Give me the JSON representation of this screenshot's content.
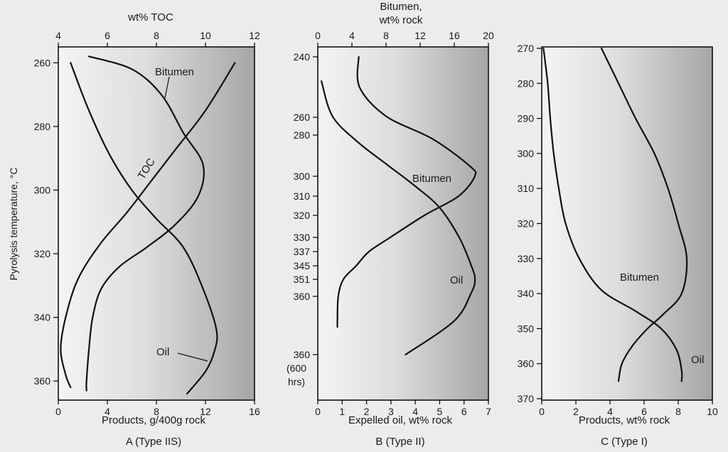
{
  "colors": {
    "panel_light": "#f2f2f2",
    "panel_dark": "#a9a9a9",
    "line": "#111111",
    "page": "#ececec"
  },
  "chart_data": [
    {
      "id": "A",
      "type": "line",
      "caption": "A (Type IIS)",
      "ylabel": "Pyrolysis temperature, °C",
      "ylim": [
        366,
        255
      ],
      "y_ticks": [
        260,
        280,
        300,
        320,
        340,
        360
      ],
      "top_axis": {
        "label": "wt% TOC",
        "ticks": [
          4,
          6,
          8,
          10,
          12
        ],
        "range": [
          4,
          12
        ]
      },
      "bottom_axis": {
        "label": "Products, g/400g rock",
        "ticks": [
          0,
          4,
          8,
          12,
          16
        ],
        "range": [
          0,
          16
        ]
      },
      "series": [
        {
          "name": "Bitumen",
          "axis": "bottom",
          "points": [
            [
              2.5,
              258
            ],
            [
              6,
              262
            ],
            [
              8.4,
              270
            ],
            [
              10.2,
              282
            ],
            [
              11.8,
              292
            ],
            [
              11.4,
              302
            ],
            [
              9.5,
              311
            ],
            [
              7.2,
              318
            ],
            [
              5.0,
              324
            ],
            [
              3.5,
              331
            ],
            [
              2.8,
              340
            ],
            [
              2.5,
              350
            ],
            [
              2.3,
              360
            ],
            [
              2.3,
              363
            ]
          ]
        },
        {
          "name": "TOC",
          "axis": "top",
          "points": [
            [
              11.2,
              260
            ],
            [
              10.0,
              275
            ],
            [
              8.8,
              287
            ],
            [
              7.8,
              297
            ],
            [
              6.8,
              307
            ],
            [
              5.7,
              317
            ],
            [
              4.8,
              328
            ],
            [
              4.3,
              340
            ],
            [
              4.1,
              350
            ],
            [
              4.3,
              358
            ],
            [
              4.5,
              362
            ]
          ]
        },
        {
          "name": "Oil",
          "axis": "bottom",
          "points": [
            [
              1.0,
              260
            ],
            [
              2.5,
              275
            ],
            [
              4.2,
              289
            ],
            [
              6.0,
              300
            ],
            [
              8.0,
              309
            ],
            [
              10.2,
              318
            ],
            [
              11.8,
              331
            ],
            [
              12.9,
              344
            ],
            [
              12.7,
              351
            ],
            [
              12.0,
              357
            ],
            [
              10.5,
              364
            ]
          ]
        }
      ],
      "annotations": [
        {
          "text": "Bitumen"
        },
        {
          "text": "TOC"
        },
        {
          "text": "Oil"
        }
      ]
    },
    {
      "id": "B",
      "type": "line",
      "caption": "B (Type II)",
      "ylabel": "",
      "y_ticks": [
        "240",
        "260",
        "280",
        "300",
        "310",
        "320",
        "330",
        "337",
        "345",
        "351",
        "360",
        "360"
      ],
      "y_ticks_note": [
        "(600",
        "hrs)"
      ],
      "top_axis": {
        "label_lines": [
          "Bitumen,",
          "wt% rock"
        ],
        "ticks": [
          0,
          4,
          8,
          12,
          16,
          20
        ],
        "range": [
          0,
          20
        ]
      },
      "bottom_axis": {
        "label": "Expelled oil, wt% rock",
        "ticks": [
          0,
          1,
          2,
          3,
          4,
          5,
          6,
          7
        ],
        "range": [
          0,
          7
        ]
      },
      "series": [
        {
          "name": "Bitumen",
          "axis": "top",
          "points": [
            [
              4.8,
              240
            ],
            [
              4.9,
              255
            ],
            [
              8.0,
              270
            ],
            [
              13.5,
              282
            ],
            [
              17.8,
              295
            ],
            [
              18.4,
              300
            ],
            [
              16.5,
              310
            ],
            [
              12.5,
              320
            ],
            [
              8.5,
              330
            ],
            [
              6.0,
              337
            ],
            [
              4.5,
              345
            ],
            [
              3.0,
              351
            ],
            [
              2.4,
              360
            ],
            [
              2.3,
              368
            ],
            [
              2.3,
              370
            ]
          ]
        },
        {
          "name": "Oil",
          "axis": "bottom",
          "points": [
            [
              0.15,
              252
            ],
            [
              0.6,
              270
            ],
            [
              1.6,
              283
            ],
            [
              2.8,
              294
            ],
            [
              4.0,
              305
            ],
            [
              5.0,
              316
            ],
            [
              5.8,
              330
            ],
            [
              6.3,
              345
            ],
            [
              6.45,
              351
            ],
            [
              6.3,
              358
            ],
            [
              5.6,
              368
            ],
            [
              3.6,
              380
            ]
          ]
        }
      ],
      "annotations": [
        {
          "text": "Bitumen"
        },
        {
          "text": "Oil"
        }
      ]
    },
    {
      "id": "C",
      "type": "line",
      "caption": "C (Type I)",
      "ylabel": "",
      "ylim": [
        270,
        370
      ],
      "y_ticks": [
        270,
        280,
        290,
        300,
        310,
        320,
        330,
        340,
        350,
        360,
        370
      ],
      "bottom_axis": {
        "label": "Products, wt% rock",
        "ticks": [
          0,
          2,
          4,
          6,
          8,
          10
        ],
        "range": [
          0,
          10
        ]
      },
      "series": [
        {
          "name": "Bitumen",
          "axis": "bottom",
          "points": [
            [
              3.5,
              270
            ],
            [
              4.5,
              280
            ],
            [
              5.5,
              290
            ],
            [
              6.6,
              300
            ],
            [
              7.4,
              310
            ],
            [
              8.0,
              320
            ],
            [
              8.5,
              330
            ],
            [
              8.2,
              340
            ],
            [
              7.1,
              346
            ],
            [
              6.2,
              350
            ],
            [
              5.3,
              355
            ],
            [
              4.7,
              360
            ],
            [
              4.5,
              365
            ]
          ]
        },
        {
          "name": "Oil",
          "axis": "bottom",
          "points": [
            [
              0.1,
              270
            ],
            [
              0.35,
              280
            ],
            [
              0.5,
              290
            ],
            [
              0.7,
              300
            ],
            [
              1.0,
              310
            ],
            [
              1.4,
              320
            ],
            [
              2.2,
              330
            ],
            [
              3.5,
              339
            ],
            [
              5.5,
              345
            ],
            [
              7.0,
              350
            ],
            [
              7.9,
              356
            ],
            [
              8.2,
              362
            ],
            [
              8.2,
              365
            ]
          ]
        }
      ],
      "annotations": [
        {
          "text": "Bitumen"
        },
        {
          "text": "Oil"
        }
      ]
    }
  ]
}
